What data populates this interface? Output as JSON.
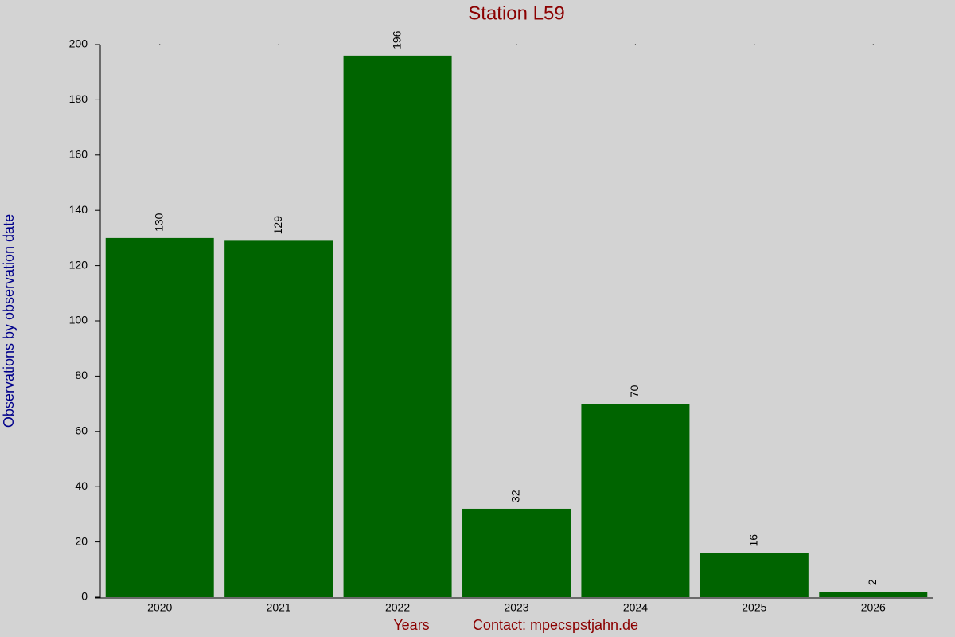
{
  "chart_data": {
    "type": "bar",
    "title": "Station L59",
    "xlabel": "Years",
    "contact": "Contact: mpecspstjahn.de",
    "ylabel": "Observations by observation date",
    "categories": [
      "2020",
      "2021",
      "2022",
      "2023",
      "2024",
      "2025",
      "2026"
    ],
    "values": [
      130,
      129,
      196,
      32,
      70,
      16,
      2
    ],
    "color": "#006400",
    "ylim": [
      0,
      200
    ],
    "yticks": [
      0,
      20,
      40,
      60,
      80,
      100,
      120,
      140,
      160,
      180,
      200
    ],
    "grid": false
  }
}
